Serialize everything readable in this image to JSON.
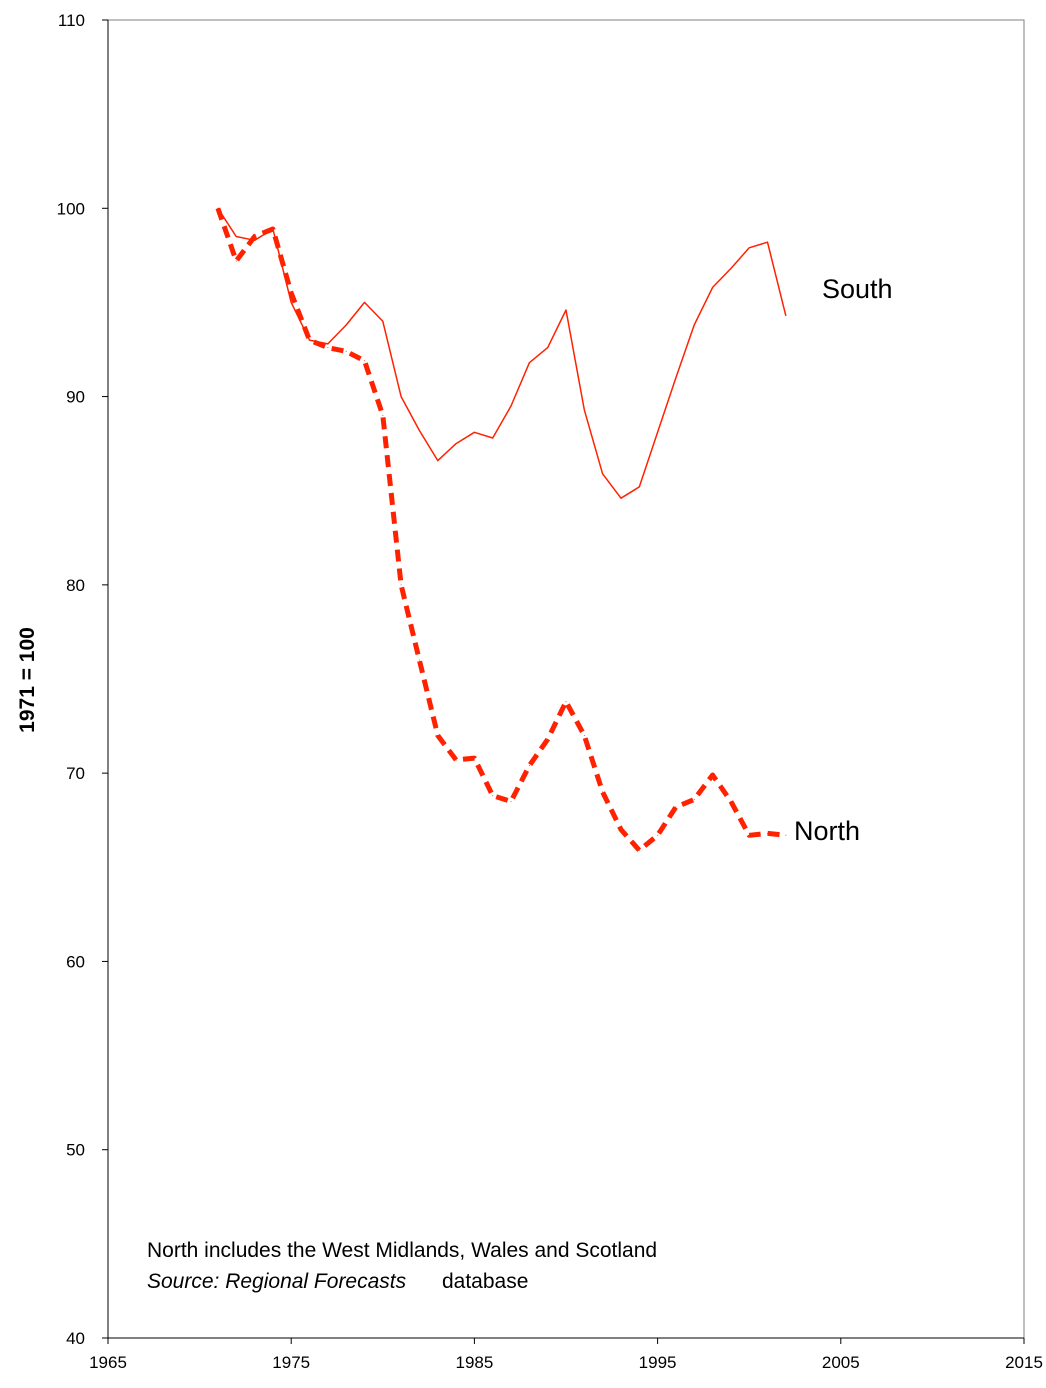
{
  "chart_data": {
    "type": "line",
    "ylabel": "1971 = 100",
    "xlabel": "",
    "xlim": [
      1965,
      2015
    ],
    "ylim": [
      40,
      110
    ],
    "x_ticks": [
      1965,
      1975,
      1985,
      1995,
      2005,
      2015
    ],
    "y_ticks": [
      40,
      50,
      60,
      70,
      80,
      90,
      100,
      110
    ],
    "grid": false,
    "legend": "none",
    "series": [
      {
        "name": "South",
        "style": "solid",
        "color": "#ff2200",
        "x": [
          1971,
          1972,
          1973,
          1974,
          1975,
          1976,
          1977,
          1978,
          1979,
          1980,
          1981,
          1982,
          1983,
          1984,
          1985,
          1986,
          1987,
          1988,
          1989,
          1990,
          1991,
          1992,
          1993,
          1994,
          1995,
          1996,
          1997,
          1998,
          1999,
          2000,
          2001,
          2002
        ],
        "y": [
          100,
          98.5,
          98.3,
          98.9,
          95.0,
          93.0,
          92.8,
          93.8,
          95.0,
          94.0,
          90.0,
          88.2,
          86.6,
          87.5,
          88.1,
          87.8,
          89.5,
          91.8,
          92.6,
          94.6,
          89.3,
          85.9,
          84.6,
          85.2,
          88.1,
          91.0,
          93.8,
          95.8,
          96.8,
          97.9,
          98.2,
          94.3
        ]
      },
      {
        "name": "North",
        "style": "dashed",
        "color": "#ff2200",
        "x": [
          1971,
          1972,
          1973,
          1974,
          1975,
          1976,
          1977,
          1978,
          1979,
          1980,
          1981,
          1982,
          1983,
          1984,
          1985,
          1986,
          1987,
          1988,
          1989,
          1990,
          1991,
          1992,
          1993,
          1994,
          1995,
          1996,
          1997,
          1998,
          1999,
          2000,
          2001,
          2002
        ],
        "y": [
          100,
          97.2,
          98.5,
          98.9,
          95.5,
          93.0,
          92.6,
          92.4,
          91.9,
          89.0,
          80.0,
          76.0,
          72.0,
          70.7,
          70.8,
          68.8,
          68.5,
          70.4,
          71.8,
          73.8,
          72.0,
          69.0,
          67.0,
          65.9,
          66.7,
          68.2,
          68.6,
          69.9,
          68.5,
          66.7,
          66.8,
          66.7
        ]
      }
    ],
    "series_labels": [
      "South",
      "North"
    ],
    "annotations": {
      "note": "North includes the West Midlands, Wales and Scotland",
      "source_prefix": "Source: Regional Forecasts",
      "source_suffix": "database"
    }
  }
}
